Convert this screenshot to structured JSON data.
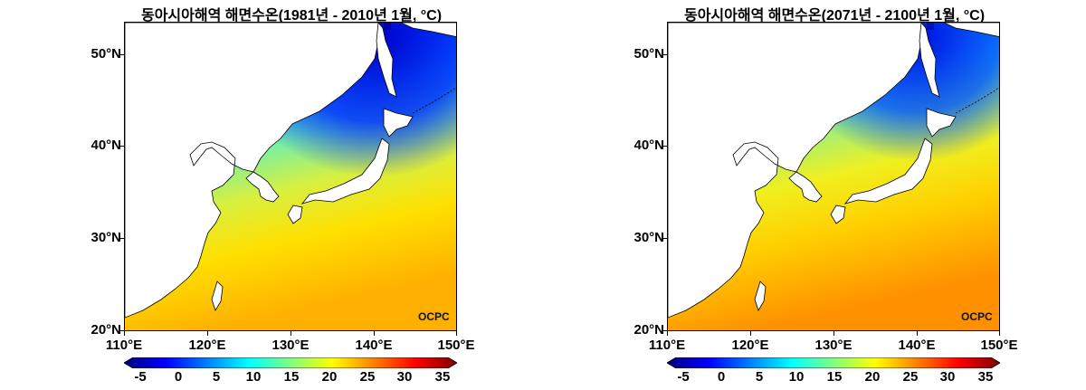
{
  "panels": [
    {
      "title": "동아시아해역 해면수온(1981년 - 2010년 1월, °C)",
      "watermark": "OCPC",
      "lat_labels": [
        "50°N",
        "40°N",
        "30°N",
        "20°N"
      ],
      "lon_labels": [
        "110°E",
        "120°E",
        "130°E",
        "140°E",
        "150°E"
      ],
      "colorbar_ticks": [
        "-5",
        "0",
        "5",
        "10",
        "15",
        "20",
        "25",
        "30",
        "35"
      ]
    },
    {
      "title": "동아시아해역 해면수온(2071년 - 2100년 1월, °C)",
      "watermark": "OCPC",
      "lat_labels": [
        "50°N",
        "40°N",
        "30°N",
        "20°N"
      ],
      "lon_labels": [
        "110°E",
        "120°E",
        "130°E",
        "140°E",
        "150°E"
      ],
      "colorbar_ticks": [
        "-5",
        "0",
        "5",
        "10",
        "15",
        "20",
        "25",
        "30",
        "35"
      ]
    }
  ],
  "colorscale": {
    "min": -5,
    "max": 35,
    "colors": [
      "#00007f",
      "#0000ff",
      "#0080ff",
      "#00ffff",
      "#80ff80",
      "#ffff00",
      "#ff8000",
      "#ff0000",
      "#7f0000"
    ]
  },
  "map_extent": {
    "lon_min": 110,
    "lon_max": 150,
    "lat_min": 20,
    "lat_max": 53.5
  },
  "colors": {
    "land": "#ffffff",
    "coastline": "#000000"
  }
}
